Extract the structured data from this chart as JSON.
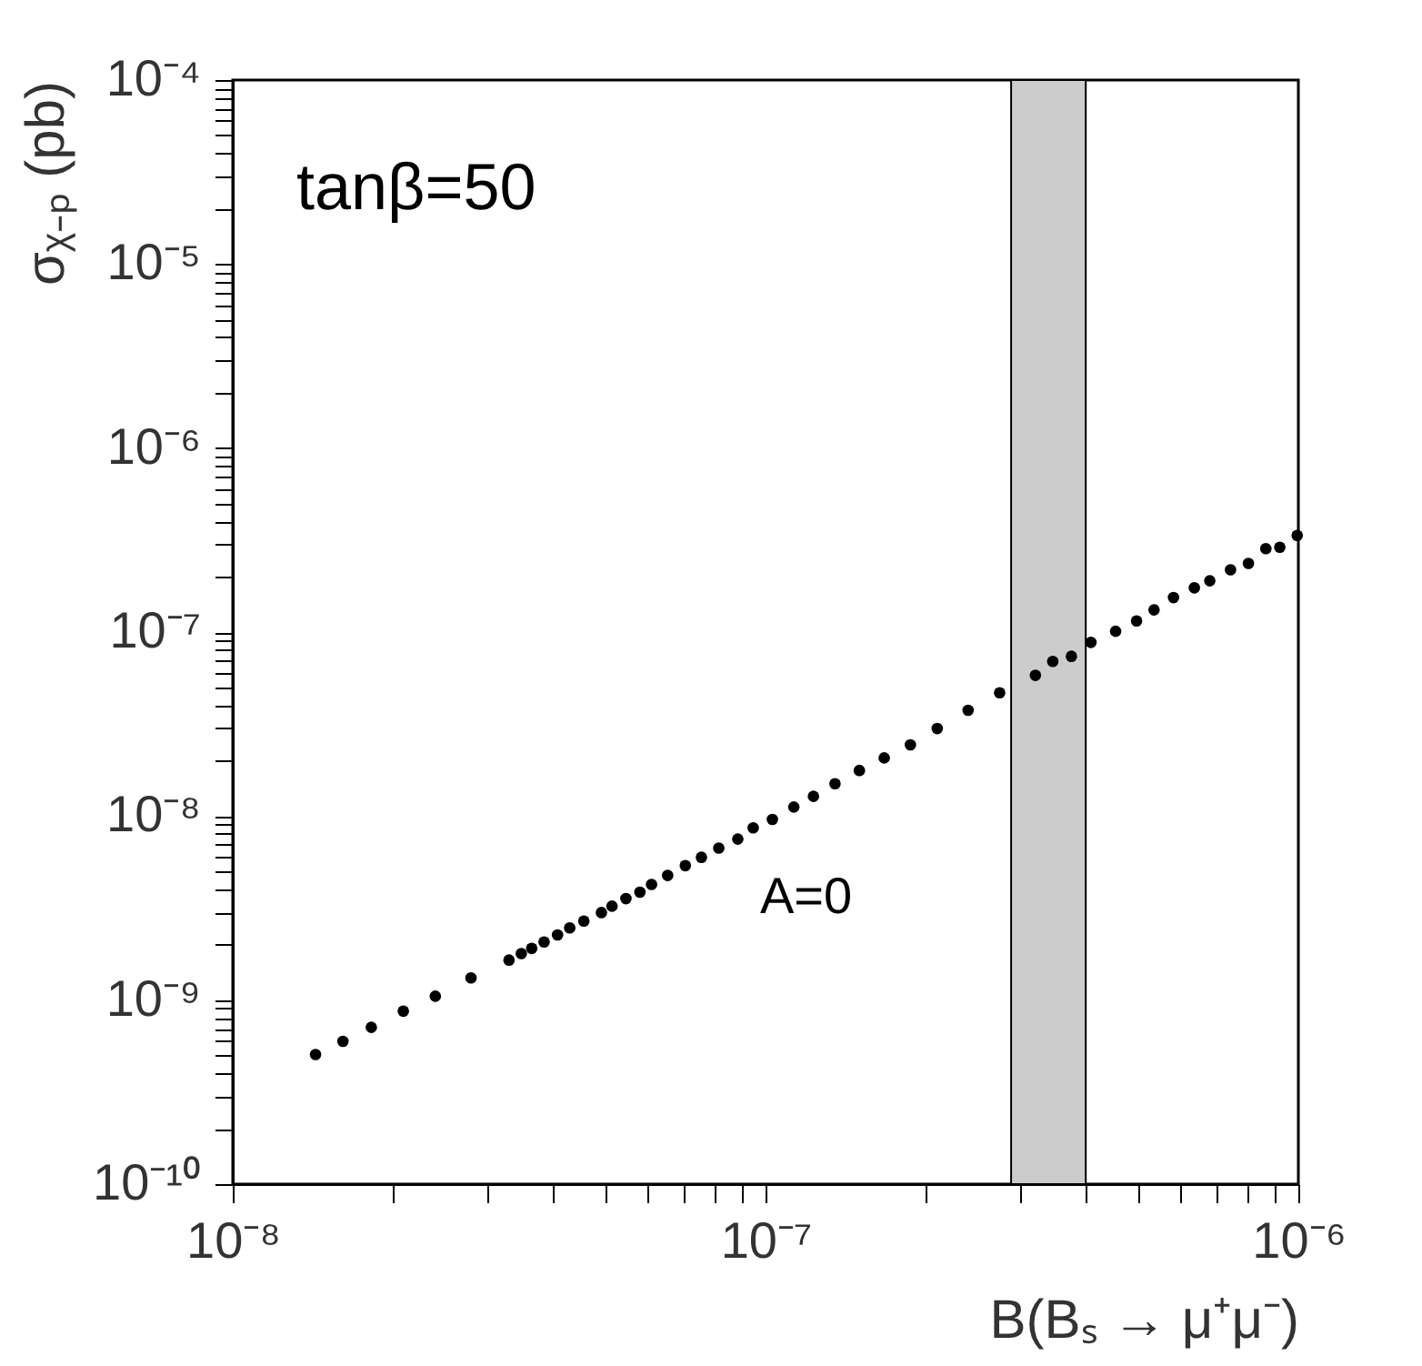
{
  "chart_data": {
    "type": "scatter",
    "xlabel": "B(Bₛ → μ⁺μ⁻)",
    "ylabel": "σᵪ₋ₚ (pb)",
    "annotations": [
      "tanβ=50",
      "A=0"
    ],
    "log": "xy",
    "grid": false,
    "marker": "circle",
    "xlim": [
      1e-08,
      1e-06
    ],
    "ylim": [
      1e-10,
      0.0001
    ],
    "xticks": [
      {
        "value": 1e-08,
        "label": "10⁻⁸"
      },
      {
        "value": 2e-08,
        "label": null
      },
      {
        "value": 3e-08,
        "label": null
      },
      {
        "value": 4e-08,
        "label": null
      },
      {
        "value": 5e-08,
        "label": null
      },
      {
        "value": 6e-08,
        "label": null
      },
      {
        "value": 7e-08,
        "label": null
      },
      {
        "value": 8e-08,
        "label": null
      },
      {
        "value": 9e-08,
        "label": null
      },
      {
        "value": 1e-07,
        "label": "10⁻⁷"
      },
      {
        "value": 2e-07,
        "label": null
      },
      {
        "value": 3e-07,
        "label": null
      },
      {
        "value": 4e-07,
        "label": null
      },
      {
        "value": 5e-07,
        "label": null
      },
      {
        "value": 6e-07,
        "label": null
      },
      {
        "value": 7e-07,
        "label": null
      },
      {
        "value": 8e-07,
        "label": null
      },
      {
        "value": 9e-07,
        "label": null
      },
      {
        "value": 1e-06,
        "label": "10⁻⁶"
      }
    ],
    "yticks": [
      {
        "value": 1e-10,
        "label": "10⁻¹⁰"
      },
      {
        "value": 2e-10,
        "label": null
      },
      {
        "value": 3e-10,
        "label": null
      },
      {
        "value": 4e-10,
        "label": null
      },
      {
        "value": 5e-10,
        "label": null
      },
      {
        "value": 6e-10,
        "label": null
      },
      {
        "value": 7e-10,
        "label": null
      },
      {
        "value": 8e-10,
        "label": null
      },
      {
        "value": 9e-10,
        "label": null
      },
      {
        "value": 1e-09,
        "label": "10⁻⁹"
      },
      {
        "value": 2e-09,
        "label": null
      },
      {
        "value": 3e-09,
        "label": null
      },
      {
        "value": 4e-09,
        "label": null
      },
      {
        "value": 5e-09,
        "label": null
      },
      {
        "value": 6e-09,
        "label": null
      },
      {
        "value": 7e-09,
        "label": null
      },
      {
        "value": 8e-09,
        "label": null
      },
      {
        "value": 9e-09,
        "label": null
      },
      {
        "value": 1e-08,
        "label": "10⁻⁸"
      },
      {
        "value": 2e-08,
        "label": null
      },
      {
        "value": 3e-08,
        "label": null
      },
      {
        "value": 4e-08,
        "label": null
      },
      {
        "value": 5e-08,
        "label": null
      },
      {
        "value": 6e-08,
        "label": null
      },
      {
        "value": 7e-08,
        "label": null
      },
      {
        "value": 8e-08,
        "label": null
      },
      {
        "value": 9e-08,
        "label": null
      },
      {
        "value": 1e-07,
        "label": "10⁻⁷"
      },
      {
        "value": 2e-07,
        "label": null
      },
      {
        "value": 3e-07,
        "label": null
      },
      {
        "value": 4e-07,
        "label": null
      },
      {
        "value": 5e-07,
        "label": null
      },
      {
        "value": 6e-07,
        "label": null
      },
      {
        "value": 7e-07,
        "label": null
      },
      {
        "value": 8e-07,
        "label": null
      },
      {
        "value": 9e-07,
        "label": null
      },
      {
        "value": 1e-06,
        "label": "10⁻⁶"
      },
      {
        "value": 2e-06,
        "label": null
      },
      {
        "value": 3e-06,
        "label": null
      },
      {
        "value": 4e-06,
        "label": null
      },
      {
        "value": 5e-06,
        "label": null
      },
      {
        "value": 6e-06,
        "label": null
      },
      {
        "value": 7e-06,
        "label": null
      },
      {
        "value": 8e-06,
        "label": null
      },
      {
        "value": 9e-06,
        "label": null
      },
      {
        "value": 1e-05,
        "label": "10⁻⁵"
      },
      {
        "value": 2e-05,
        "label": null
      },
      {
        "value": 3e-05,
        "label": null
      },
      {
        "value": 4e-05,
        "label": null
      },
      {
        "value": 5e-05,
        "label": null
      },
      {
        "value": 6e-05,
        "label": null
      },
      {
        "value": 7e-05,
        "label": null
      },
      {
        "value": 8e-05,
        "label": null
      },
      {
        "value": 9e-05,
        "label": null
      },
      {
        "value": 0.0001,
        "label": "10⁻⁴"
      }
    ],
    "bands": [
      {
        "axis": "x",
        "from": 2.89e-07,
        "to": 3.99e-07,
        "color": "#cccccc"
      }
    ],
    "series": [
      {
        "color": "#000000",
        "x": [
          1.43e-08,
          1.61e-08,
          1.82e-08,
          2.09e-08,
          2.4e-08,
          2.8e-08,
          3.3e-08,
          3.48e-08,
          3.64e-08,
          3.84e-08,
          4.07e-08,
          4.29e-08,
          4.56e-08,
          4.92e-08,
          5.15e-08,
          5.47e-08,
          5.81e-08,
          6.11e-08,
          6.55e-08,
          7.07e-08,
          7.58e-08,
          8.17e-08,
          8.87e-08,
          9.48e-08,
          1.03e-07,
          1.13e-07,
          1.23e-07,
          1.35e-07,
          1.5e-07,
          1.67e-07,
          1.87e-07,
          2.1e-07,
          2.4e-07,
          2.75e-07,
          3.21e-07,
          3.46e-07,
          3.75e-07,
          4.08e-07,
          4.54e-07,
          4.97e-07,
          5.36e-07,
          5.83e-07,
          6.38e-07,
          6.82e-07,
          7.46e-07,
          8.06e-07,
          8.69e-07,
          9.23e-07,
          9.95e-07
        ],
        "values": [
          5.06e-10,
          5.97e-10,
          7.11e-10,
          8.71e-10,
          1.05e-09,
          1.32e-09,
          1.65e-09,
          1.79e-09,
          1.91e-09,
          2.07e-09,
          2.26e-09,
          2.47e-09,
          2.69e-09,
          2.99e-09,
          3.24e-09,
          3.56e-09,
          3.86e-09,
          4.25e-09,
          4.76e-09,
          5.38e-09,
          5.97e-09,
          6.7e-09,
          7.5e-09,
          8.63e-09,
          9.59e-09,
          1.12e-08,
          1.28e-08,
          1.5e-08,
          1.77e-08,
          2.07e-08,
          2.44e-08,
          2.99e-08,
          3.76e-08,
          4.68e-08,
          5.82e-08,
          6.93e-08,
          7.38e-08,
          8.79e-08,
          1.01e-07,
          1.15e-07,
          1.32e-07,
          1.54e-07,
          1.74e-07,
          1.9e-07,
          2.18e-07,
          2.36e-07,
          2.84e-07,
          2.89e-07,
          3.35e-07
        ]
      }
    ]
  }
}
